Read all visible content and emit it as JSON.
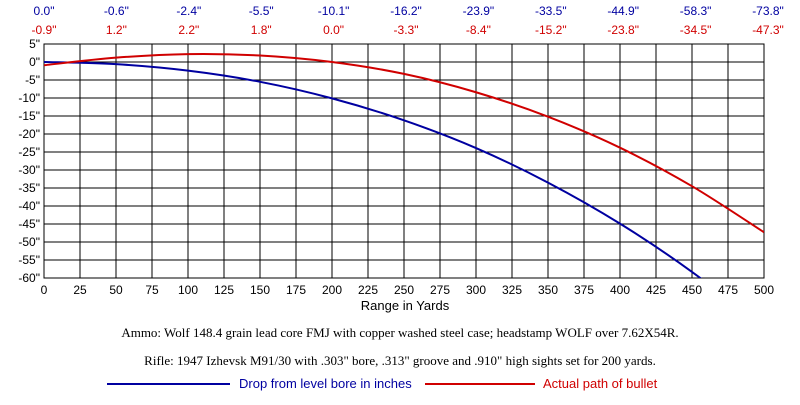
{
  "chart_data": {
    "type": "line",
    "title": "",
    "xlabel": "Range in Yards",
    "ylabel": "",
    "xlim": [
      0,
      500
    ],
    "ylim": [
      -60,
      5
    ],
    "x_ticks": [
      0,
      25,
      50,
      75,
      100,
      125,
      150,
      175,
      200,
      225,
      250,
      275,
      300,
      325,
      350,
      375,
      400,
      425,
      450,
      475,
      500
    ],
    "y_ticks": [
      5,
      0,
      -5,
      -10,
      -15,
      -20,
      -25,
      -30,
      -35,
      -40,
      -45,
      -50,
      -55,
      -60
    ],
    "y_tick_labels": [
      "5\"",
      "0\"",
      "-5\"",
      "-10\"",
      "-15\"",
      "-20\"",
      "-25\"",
      "-30\"",
      "-35\"",
      "-40\"",
      "-45\"",
      "-50\"",
      "-55\"",
      "-60\""
    ],
    "grid": true,
    "top_table": {
      "drop_labels": [
        "0.0\"",
        "-0.6\"",
        "-2.4\"",
        "-5.5\"",
        "-10.1\"",
        "-16.2\"",
        "-23.9\"",
        "-33.5\"",
        "-44.9\"",
        "-58.3\"",
        "-73.8\""
      ],
      "path_labels": [
        "-0.9\"",
        "1.2\"",
        "2.2\"",
        "1.8\"",
        "0.0\"",
        "-3.3\"",
        "-8.4\"",
        "-15.2\"",
        "-23.8\"",
        "-34.5\"",
        "-47.3\""
      ]
    },
    "series": [
      {
        "name": "Drop from level bore in inches",
        "color": "#0000a0",
        "x": [
          0,
          50,
          100,
          150,
          200,
          250,
          300,
          350,
          400,
          450,
          500
        ],
        "values": [
          0.0,
          -0.6,
          -2.4,
          -5.5,
          -10.1,
          -16.2,
          -23.9,
          -33.5,
          -44.9,
          -58.3,
          -73.8
        ]
      },
      {
        "name": "Actual path of bullet",
        "color": "#d00000",
        "x": [
          0,
          50,
          100,
          150,
          200,
          250,
          300,
          350,
          400,
          450,
          500
        ],
        "values": [
          -0.9,
          1.2,
          2.2,
          1.8,
          0.0,
          -3.3,
          -8.4,
          -15.2,
          -23.8,
          -34.5,
          -47.3
        ]
      }
    ],
    "legend": {
      "placement": "bottom",
      "entries": [
        "Drop from level bore in inches",
        "Actual path of bullet"
      ]
    },
    "annotations": [
      "Ammo:  Wolf 148.4 grain lead core FMJ with copper washed steel case; headstamp WOLF over 7.62X54R.",
      "Rifle:  1947 Izhevsk M91/30 with .303\" bore, .313\" groove and .910\" high sights set for 200 yards."
    ]
  },
  "colors": {
    "drop_series": "#0000a0",
    "path_series": "#d00000",
    "grid": "#000000",
    "background": "#ffffff"
  }
}
